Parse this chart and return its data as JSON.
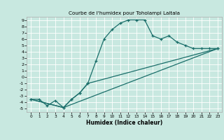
{
  "title": "Courbe de l'humidex pour Toholampi Laitala",
  "xlabel": "Humidex (Indice chaleur)",
  "xlim": [
    -0.5,
    23.5
  ],
  "ylim": [
    -5.5,
    9.5
  ],
  "xticks": [
    0,
    1,
    2,
    3,
    4,
    5,
    6,
    7,
    8,
    9,
    10,
    11,
    12,
    13,
    14,
    15,
    16,
    17,
    18,
    19,
    20,
    21,
    22,
    23
  ],
  "yticks": [
    -5,
    -4,
    -3,
    -2,
    -1,
    0,
    1,
    2,
    3,
    4,
    5,
    6,
    7,
    8,
    9
  ],
  "bg_color": "#c8e8e0",
  "line_color": "#1a6e6a",
  "grid_color": "#ffffff",
  "line1_x": [
    0,
    1,
    2,
    3,
    4,
    5,
    6,
    7,
    8,
    9,
    10,
    11,
    12,
    13,
    14,
    15,
    16,
    17,
    18,
    19,
    20,
    21,
    22,
    23
  ],
  "line1_y": [
    -3.5,
    -3.5,
    -4.5,
    -3.7,
    -4.8,
    -3.5,
    -2.5,
    -1.0,
    2.5,
    6.0,
    7.5,
    8.5,
    9.0,
    9.0,
    9.0,
    6.5,
    6.0,
    6.5,
    5.5,
    5.0,
    4.5,
    4.5,
    4.5,
    4.5
  ],
  "line2_x": [
    0,
    4,
    5,
    6,
    7,
    23
  ],
  "line2_y": [
    -3.5,
    -4.8,
    -3.5,
    -2.5,
    -1.0,
    4.5
  ],
  "line3_x": [
    0,
    4,
    23
  ],
  "line3_y": [
    -3.5,
    -4.8,
    4.5
  ]
}
